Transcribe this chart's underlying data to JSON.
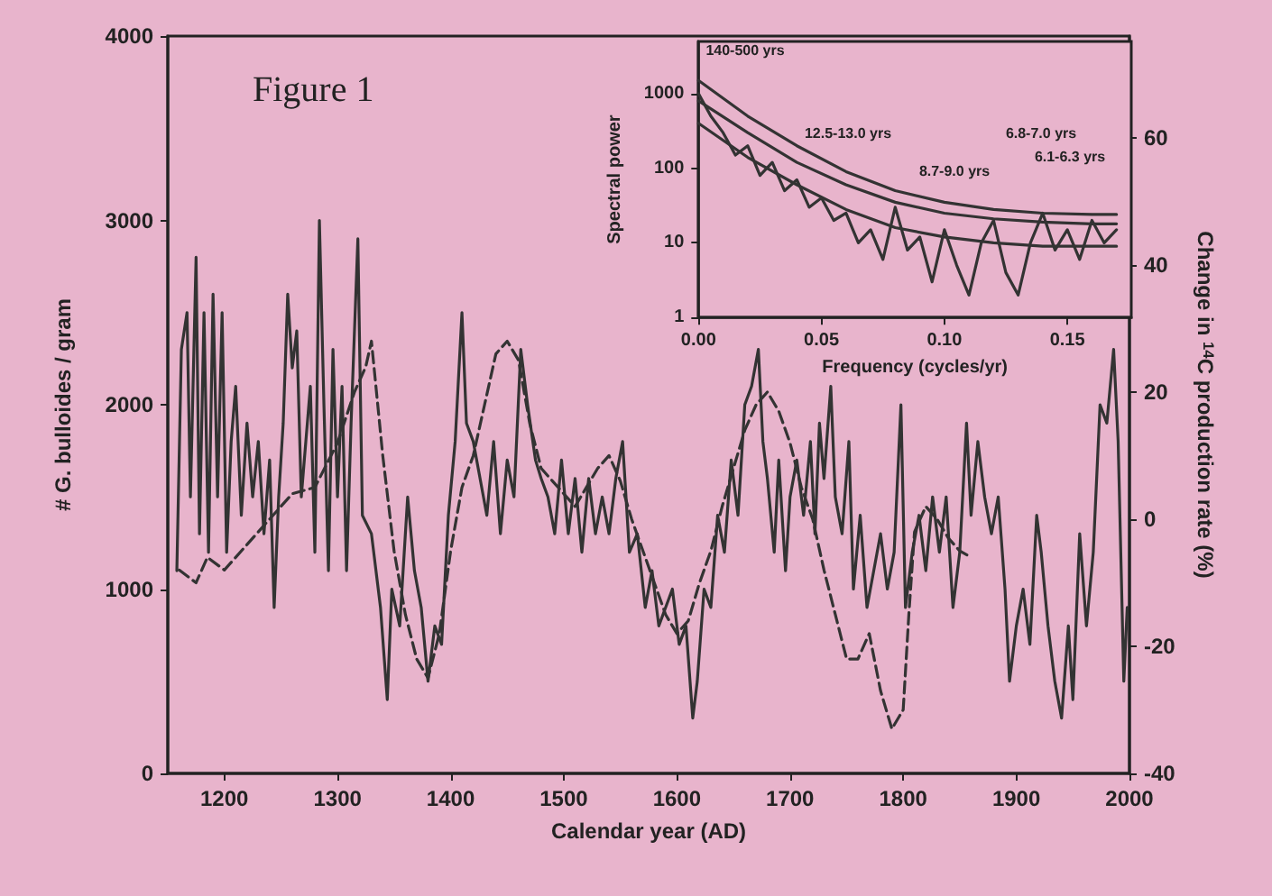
{
  "chart_data": [
    {
      "type": "line",
      "xlabel": "Calendar year (AD)",
      "ylabel": "# G. bulloides / gram",
      "y2label": "Change in $^{14}$C production rate (%)",
      "annotations": [
        "Figure 1"
      ],
      "xlim": [
        1150,
        2000
      ],
      "xticks": [
        1200,
        1300,
        1400,
        1500,
        1600,
        1700,
        1800,
        1900,
        2000
      ],
      "ylim": [
        0,
        4000
      ],
      "yticks": [
        0,
        1000,
        2000,
        3000,
        4000
      ],
      "y2lim": [
        -40,
        76
      ],
      "y2ticks": [
        -40,
        -20,
        0,
        20,
        40,
        60
      ],
      "series": [
        {
          "color": "#333333",
          "line_style": "solid",
          "x": [
            1158,
            1162,
            1167,
            1170,
            1175,
            1178,
            1182,
            1186,
            1190,
            1194,
            1198,
            1202,
            1206,
            1210,
            1215,
            1220,
            1225,
            1230,
            1235,
            1240,
            1244,
            1248,
            1252,
            1256,
            1260,
            1264,
            1268,
            1272,
            1276,
            1280,
            1284,
            1288,
            1292,
            1296,
            1300,
            1304,
            1308,
            1312,
            1318,
            1322,
            1330,
            1338,
            1344,
            1348,
            1355,
            1362,
            1368,
            1374,
            1380,
            1386,
            1392,
            1398,
            1404,
            1410,
            1414,
            1420,
            1426,
            1432,
            1438,
            1444,
            1450,
            1456,
            1462,
            1468,
            1475,
            1480,
            1486,
            1492,
            1498,
            1504,
            1510,
            1516,
            1522,
            1528,
            1534,
            1540,
            1546,
            1552,
            1558,
            1565,
            1572,
            1578,
            1584,
            1590,
            1596,
            1602,
            1608,
            1614,
            1618,
            1624,
            1630,
            1636,
            1642,
            1648,
            1654,
            1660,
            1666,
            1672,
            1676,
            1680,
            1686,
            1690,
            1696,
            1700,
            1706,
            1712,
            1718,
            1722,
            1726,
            1730,
            1736,
            1740,
            1746,
            1752,
            1756,
            1762,
            1768,
            1774,
            1780,
            1786,
            1792,
            1798,
            1802,
            1808,
            1814,
            1820,
            1826,
            1832,
            1838,
            1844,
            1850,
            1856,
            1860,
            1866,
            1872,
            1878,
            1884,
            1890,
            1894,
            1900,
            1906,
            1912,
            1918,
            1922,
            1928,
            1934,
            1940,
            1946,
            1950,
            1956,
            1962,
            1968,
            1974,
            1980,
            1986,
            1990,
            1995,
            1998
          ],
          "values": [
            1100,
            2300,
            2500,
            1500,
            2800,
            1300,
            2500,
            1200,
            2600,
            1500,
            2500,
            1200,
            1800,
            2100,
            1400,
            1900,
            1500,
            1800,
            1300,
            1700,
            900,
            1500,
            1900,
            2600,
            2200,
            2400,
            1500,
            1800,
            2100,
            1200,
            3000,
            2000,
            1100,
            2300,
            1500,
            2100,
            1100,
            1900,
            2900,
            1400,
            1300,
            900,
            400,
            1000,
            800,
            1500,
            1100,
            900,
            500,
            800,
            700,
            1400,
            1800,
            2500,
            1900,
            1800,
            1600,
            1400,
            1800,
            1300,
            1700,
            1500,
            2300,
            2000,
            1700,
            1600,
            1500,
            1300,
            1700,
            1300,
            1600,
            1200,
            1600,
            1300,
            1500,
            1300,
            1600,
            1800,
            1200,
            1300,
            900,
            1100,
            800,
            900,
            1000,
            700,
            800,
            300,
            500,
            1000,
            900,
            1400,
            1200,
            1700,
            1400,
            2000,
            2100,
            2300,
            1800,
            1600,
            1200,
            1700,
            1100,
            1500,
            1700,
            1400,
            1800,
            1300,
            1900,
            1600,
            2100,
            1500,
            1300,
            1800,
            1000,
            1400,
            900,
            1100,
            1300,
            1000,
            1200,
            2000,
            900,
            1200,
            1400,
            1100,
            1500,
            1200,
            1500,
            900,
            1200,
            1900,
            1400,
            1800,
            1500,
            1300,
            1500,
            1000,
            500,
            800,
            1000,
            700,
            1400,
            1200,
            800,
            500,
            300,
            800,
            400,
            1300,
            800,
            1200,
            2000,
            1900,
            2300,
            1800,
            500,
            900
          ]
        },
        {
          "color": "#333333",
          "line_style": "dashed",
          "axis": "y2",
          "x": [
            1160,
            1175,
            1185,
            1200,
            1220,
            1240,
            1260,
            1280,
            1300,
            1315,
            1325,
            1330,
            1340,
            1350,
            1360,
            1370,
            1380,
            1390,
            1400,
            1410,
            1420,
            1430,
            1440,
            1450,
            1460,
            1470,
            1480,
            1490,
            1500,
            1510,
            1520,
            1530,
            1540,
            1550,
            1560,
            1570,
            1580,
            1590,
            1600,
            1610,
            1620,
            1630,
            1640,
            1650,
            1660,
            1670,
            1680,
            1690,
            1700,
            1710,
            1720,
            1730,
            1740,
            1750,
            1760,
            1770,
            1780,
            1790,
            1800,
            1805,
            1810,
            1820,
            1830,
            1840,
            1850,
            1860
          ],
          "values": [
            -8,
            -10,
            -6,
            -8,
            -4,
            0,
            4,
            5,
            12,
            20,
            24,
            28,
            10,
            -5,
            -15,
            -22,
            -25,
            -18,
            -5,
            5,
            10,
            18,
            26,
            28,
            25,
            15,
            8,
            6,
            4,
            2,
            5,
            8,
            10,
            6,
            0,
            -5,
            -10,
            -15,
            -18,
            -16,
            -10,
            -5,
            2,
            8,
            14,
            18,
            20,
            17,
            12,
            5,
            0,
            -8,
            -15,
            -22,
            -22,
            -18,
            -27,
            -33,
            -30,
            -15,
            -2,
            2,
            0,
            -3,
            -5,
            -6
          ]
        }
      ]
    },
    {
      "type": "line",
      "xlabel": "Frequency (cycles/yr)",
      "ylabel": "Spectral power",
      "log": "y",
      "annotations": [
        "140-500 yrs",
        "12.5-13.0 yrs",
        "8.7-9.0 yrs",
        "6.8-7.0 yrs",
        "6.1-6.3 yrs"
      ],
      "xlim": [
        0,
        0.176
      ],
      "xticks": [
        {
          "value": 0,
          "label": "0.00"
        },
        {
          "value": 0.05,
          "label": "0.05"
        },
        {
          "value": 0.1,
          "label": "0.10"
        },
        {
          "value": 0.15,
          "label": "0.15"
        }
      ],
      "ylim": [
        1,
        5000
      ],
      "yticks": [
        1,
        10,
        100,
        1000
      ],
      "series": [
        {
          "color": "#333333",
          "line_style": "solid",
          "x": [
            0,
            0.005,
            0.01,
            0.015,
            0.02,
            0.025,
            0.03,
            0.035,
            0.04,
            0.045,
            0.05,
            0.055,
            0.06,
            0.065,
            0.07,
            0.075,
            0.08,
            0.085,
            0.09,
            0.095,
            0.1,
            0.105,
            0.11,
            0.115,
            0.12,
            0.125,
            0.13,
            0.135,
            0.14,
            0.145,
            0.15,
            0.155,
            0.16,
            0.165,
            0.17
          ],
          "values": [
            1000,
            500,
            300,
            150,
            200,
            80,
            120,
            50,
            70,
            30,
            40,
            20,
            25,
            10,
            15,
            6,
            30,
            8,
            12,
            3,
            15,
            5,
            2,
            10,
            20,
            4,
            2,
            10,
            25,
            8,
            15,
            6,
            20,
            10,
            15
          ]
        },
        {
          "color": "#333333",
          "line_style": "solid",
          "x": [
            0,
            0.02,
            0.04,
            0.06,
            0.08,
            0.1,
            0.12,
            0.14,
            0.16,
            0.17
          ],
          "values": [
            1500,
            500,
            200,
            90,
            50,
            35,
            28,
            25,
            24,
            24
          ]
        },
        {
          "color": "#333333",
          "line_style": "solid",
          "x": [
            0,
            0.02,
            0.04,
            0.06,
            0.08,
            0.1,
            0.12,
            0.14,
            0.16,
            0.17
          ],
          "values": [
            800,
            300,
            120,
            60,
            35,
            25,
            21,
            19,
            18,
            18
          ]
        },
        {
          "color": "#333333",
          "line_style": "solid",
          "x": [
            0,
            0.02,
            0.04,
            0.06,
            0.08,
            0.1,
            0.12,
            0.14,
            0.16,
            0.17
          ],
          "values": [
            400,
            140,
            60,
            28,
            16,
            12,
            10,
            9,
            9,
            9
          ]
        }
      ]
    }
  ]
}
